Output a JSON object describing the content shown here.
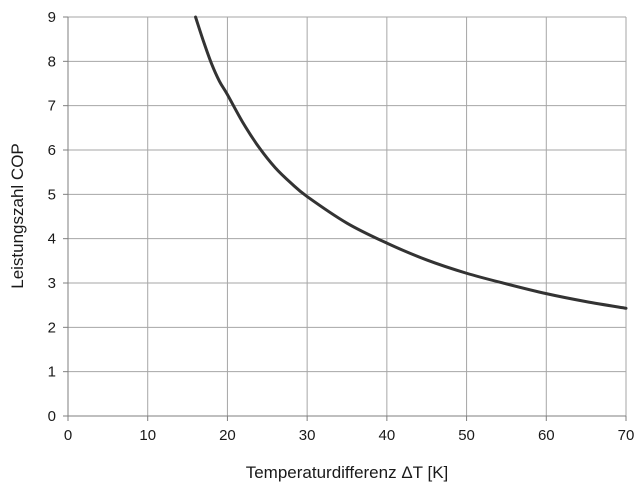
{
  "chart_data": {
    "type": "line",
    "title": "",
    "xlabel": "Temperaturdifferenz ΔT [K]",
    "ylabel": "Leistungszahl COP",
    "xlim": [
      0,
      70
    ],
    "ylim": [
      0,
      9
    ],
    "x_ticks": [
      0,
      10,
      20,
      30,
      40,
      50,
      60,
      70
    ],
    "y_ticks": [
      0,
      1,
      2,
      3,
      4,
      5,
      6,
      7,
      8,
      9
    ],
    "grid": true,
    "legend": "none",
    "colors": {
      "line": "#333333",
      "grid": "#a6a6a6",
      "axis": "#7f7f7f"
    },
    "series": [
      {
        "x": [
          16,
          17,
          18,
          19,
          20,
          22,
          24,
          26,
          28,
          30,
          35,
          40,
          45,
          50,
          55,
          60,
          65,
          70
        ],
        "y": [
          9.0,
          8.45,
          7.95,
          7.55,
          7.25,
          6.6,
          6.05,
          5.6,
          5.25,
          4.95,
          4.35,
          3.9,
          3.52,
          3.22,
          2.98,
          2.76,
          2.58,
          2.43
        ]
      }
    ]
  }
}
